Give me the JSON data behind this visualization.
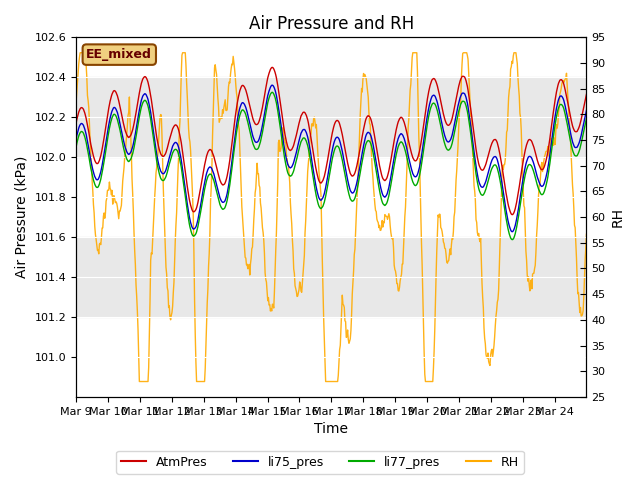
{
  "title": "Air Pressure and RH",
  "xlabel": "Time",
  "ylabel_left": "Air Pressure (kPa)",
  "ylabel_right": "RH",
  "annotation": "EE_mixed",
  "ylim_left": [
    100.8,
    102.6
  ],
  "ylim_right": [
    25,
    95
  ],
  "yticks_left": [
    101.0,
    101.2,
    101.4,
    101.6,
    101.8,
    102.0,
    102.2,
    102.4,
    102.6
  ],
  "yticks_right": [
    25,
    30,
    35,
    40,
    45,
    50,
    55,
    60,
    65,
    70,
    75,
    80,
    85,
    90,
    95
  ],
  "xtick_labels": [
    "Mar 9",
    "Mar 10",
    "Mar 11",
    "Mar 12",
    "Mar 13",
    "Mar 14",
    "Mar 15",
    "Mar 16",
    "Mar 17",
    "Mar 18",
    "Mar 19",
    "Mar 20",
    "Mar 21",
    "Mar 22",
    "Mar 23",
    "Mar 24"
  ],
  "n_days": 16,
  "colors": {
    "AtmPres": "#cc0000",
    "li75_pres": "#0000cc",
    "li77_pres": "#00aa00",
    "RH": "#ffaa00"
  },
  "legend_labels": [
    "AtmPres",
    "li75_pres",
    "li77_pres",
    "RH"
  ],
  "bg_band1": [
    101.2,
    101.6
  ],
  "bg_band2": [
    102.0,
    102.4
  ],
  "bg_color": "#e8e8e8",
  "annotation_bg": "#f0d080",
  "annotation_border": "#884400",
  "title_fontsize": 12,
  "label_fontsize": 10,
  "tick_fontsize": 8
}
